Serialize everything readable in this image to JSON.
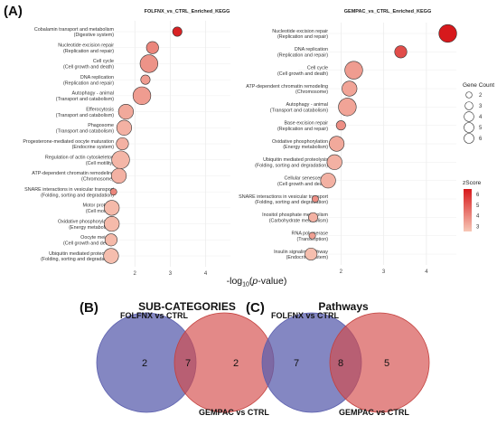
{
  "panel_labels": {
    "a": "(A)",
    "b": "(B)",
    "c": "(C)"
  },
  "shared_xlabel": "-log10(p-value)",
  "size_legend": {
    "title": "Gene Count",
    "values": [
      2,
      3,
      4,
      5,
      6
    ]
  },
  "color_legend": {
    "title": "zScore",
    "ticks": [
      6,
      5,
      4,
      3
    ],
    "range": [
      2.5,
      6.5
    ],
    "low_color": "#f7c7b6",
    "high_color": "#d7191c"
  },
  "chart_data": [
    {
      "type": "scatter",
      "title": "FOLFNX_vs_CTRL_Enriched_KEGG",
      "xlabel": "-log10(p-value)",
      "xlim": [
        1,
        4.7
      ],
      "xticks": [
        2,
        3,
        4
      ],
      "grid": true,
      "points": [
        {
          "term": "Cobalamin transport and metabolism",
          "category": "(Digestive system)",
          "x": 3.2,
          "count": 2,
          "zscore": 6.3
        },
        {
          "term": "Nucleotide excision repair",
          "category": "(Replication and repair)",
          "x": 2.5,
          "count": 3,
          "zscore": 4.0
        },
        {
          "term": "Cell cycle",
          "category": "(Cell growth and death)",
          "x": 2.4,
          "count": 5,
          "zscore": 3.7
        },
        {
          "term": "DNA replication",
          "category": "(Replication and repair)",
          "x": 2.3,
          "count": 2,
          "zscore": 3.5
        },
        {
          "term": "Autophagy - animal",
          "category": "(Transport and catabolism)",
          "x": 2.2,
          "count": 5,
          "zscore": 3.5
        },
        {
          "term": "Efferocytosis",
          "category": "(Transport and catabolism)",
          "x": 1.75,
          "count": 4,
          "zscore": 3.2
        },
        {
          "term": "Phagosome",
          "category": "(Transport and catabolism)",
          "x": 1.7,
          "count": 4,
          "zscore": 3.0
        },
        {
          "term": "Progesterone-mediated oocyte maturation",
          "category": "(Endocrine system)",
          "x": 1.65,
          "count": 3,
          "zscore": 3.0
        },
        {
          "term": "Regulation of actin cytoskeleton",
          "category": "(Cell motility)",
          "x": 1.6,
          "count": 5,
          "zscore": 2.9
        },
        {
          "term": "ATP-dependent chromatin remodeling",
          "category": "(Chromosome)",
          "x": 1.55,
          "count": 4,
          "zscore": 3.0
        },
        {
          "term": "SNARE interactions in vesicular transport",
          "category": "(Folding, sorting and degradation)",
          "x": 1.4,
          "count": 1,
          "zscore": 4.0
        },
        {
          "term": "Motor proteins",
          "category": "(Cell motility)",
          "x": 1.35,
          "count": 4,
          "zscore": 2.8
        },
        {
          "term": "Oxidative phosphorylation",
          "category": "(Energy metabolism)",
          "x": 1.35,
          "count": 4,
          "zscore": 2.8
        },
        {
          "term": "Oocyte meiosis",
          "category": "(Cell growth and death)",
          "x": 1.33,
          "count": 3,
          "zscore": 2.8
        },
        {
          "term": "Ubiquitin mediated proteolysis",
          "category": "(Folding, sorting and degradation)",
          "x": 1.33,
          "count": 4,
          "zscore": 2.7
        }
      ]
    },
    {
      "type": "scatter",
      "title": "GEMPAC_vs_CTRL_Enriched_KEGG",
      "xlabel": "-log10(p-value)",
      "xlim": [
        1,
        4.7
      ],
      "xticks": [
        2,
        3,
        4
      ],
      "grid": true,
      "points": [
        {
          "term": "Nucleotide excision repair",
          "category": "(Replication and repair)",
          "x": 4.5,
          "count": 5,
          "zscore": 6.5
        },
        {
          "term": "DNA replication",
          "category": "(Replication and repair)",
          "x": 3.4,
          "count": 3,
          "zscore": 5.3
        },
        {
          "term": "Cell cycle",
          "category": "(Cell growth and death)",
          "x": 2.3,
          "count": 5,
          "zscore": 3.5
        },
        {
          "term": "ATP-dependent chromatin remodeling",
          "category": "(Chromosome)",
          "x": 2.2,
          "count": 4,
          "zscore": 3.3
        },
        {
          "term": "Autophagy - animal",
          "category": "(Transport and catabolism)",
          "x": 2.15,
          "count": 5,
          "zscore": 3.3
        },
        {
          "term": "Base excision repair",
          "category": "(Replication and repair)",
          "x": 2.0,
          "count": 2,
          "zscore": 3.8
        },
        {
          "term": "Oxidative phosphorylation",
          "category": "(Energy metabolism)",
          "x": 1.9,
          "count": 4,
          "zscore": 3.2
        },
        {
          "term": "Ubiquitin mediated proteolysis",
          "category": "(Folding, sorting and degradation)",
          "x": 1.85,
          "count": 4,
          "zscore": 3.0
        },
        {
          "term": "Cellular senescence",
          "category": "(Cell growth and death)",
          "x": 1.7,
          "count": 4,
          "zscore": 3.0
        },
        {
          "term": "SNARE interactions in vesicular transport",
          "category": "(Folding, sorting and degradation)",
          "x": 1.4,
          "count": 1,
          "zscore": 3.8
        },
        {
          "term": "Inositol phosphate metabolism",
          "category": "(Carbohydrate metabolism)",
          "x": 1.35,
          "count": 2,
          "zscore": 3.0
        },
        {
          "term": "RNA polymerase",
          "category": "(Transcription)",
          "x": 1.33,
          "count": 1,
          "zscore": 3.4
        },
        {
          "term": "Insulin signaling pathway",
          "category": "(Endocrine system)",
          "x": 1.3,
          "count": 3,
          "zscore": 2.7
        }
      ]
    },
    {
      "type": "venn",
      "title": "SUB-CATEGORIES",
      "sets": [
        {
          "name": "FOLFNX vs CTRL",
          "color": "#5b5fae",
          "only": 2
        },
        {
          "name": "GEMPAC vs CTRL",
          "color": "#d44a48",
          "only": 2
        }
      ],
      "overlap": 7
    },
    {
      "type": "venn",
      "title": "Pathways",
      "sets": [
        {
          "name": "FOLFNX vs CTRL",
          "color": "#5b5fae",
          "only": 7
        },
        {
          "name": "GEMPAC vs CTRL",
          "color": "#d44a48",
          "only": 5
        }
      ],
      "overlap": 8
    }
  ]
}
